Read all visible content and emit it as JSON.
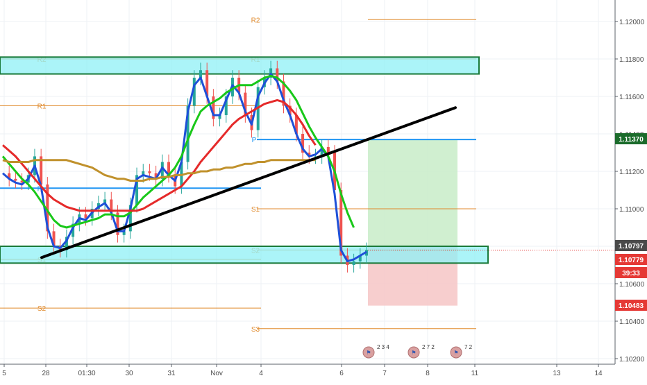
{
  "chart_data": {
    "type": "line",
    "title": "",
    "ylim": [
      1.102,
      1.1212
    ],
    "y_ticks": [
      "1.12000",
      "1.11800",
      "1.11600",
      "1.11400",
      "1.11200",
      "1.11000",
      "1.10800",
      "1.10600",
      "1.10400",
      "1.10200"
    ],
    "x_ticks": [
      "5",
      "28",
      "01:30",
      "30",
      "31",
      "Nov",
      "4",
      "6",
      "7",
      "8",
      "11",
      "13",
      "14"
    ],
    "grid": true,
    "price_labels": [
      {
        "value": "1.11370",
        "color": "#1b6b2b",
        "kind": "take-profit"
      },
      {
        "value": "1.10797",
        "color": "#4a4a4a",
        "kind": "entry"
      },
      {
        "value": "1.10779",
        "color": "#e53935",
        "kind": "last-price"
      },
      {
        "value": "39:33",
        "color": "#e53935",
        "kind": "countdown"
      },
      {
        "value": "1.10483",
        "color": "#e53935",
        "kind": "stop-loss"
      }
    ],
    "pivot_levels": [
      {
        "label": "R2",
        "value": 1.1201,
        "color": "#e08a2c"
      },
      {
        "label": "R2",
        "value": 1.118,
        "color": "#e08a2c"
      },
      {
        "label": "R1",
        "value": 1.118,
        "color": "#e08a2c"
      },
      {
        "label": "R1",
        "value": 1.1155,
        "color": "#e08a2c"
      },
      {
        "label": "P",
        "value": 1.1137,
        "color": "#2196f3"
      },
      {
        "label": "P",
        "value": 1.1111,
        "color": "#2196f3"
      },
      {
        "label": "S1",
        "value": 1.11,
        "color": "#e08a2c"
      },
      {
        "label": "S1",
        "value": 1.1073,
        "color": "#e08a2c"
      },
      {
        "label": "S2",
        "value": 1.1078,
        "color": "#e08a2c"
      },
      {
        "label": "S2",
        "value": 1.1047,
        "color": "#e08a2c"
      },
      {
        "label": "S3",
        "value": 1.1036,
        "color": "#e08a2c"
      }
    ],
    "zones": [
      {
        "name": "resistance",
        "y_top": 1.1181,
        "y_bottom": 1.1172,
        "color": "#8ff0f5"
      },
      {
        "name": "support",
        "y_top": 1.108,
        "y_bottom": 1.1071,
        "color": "#8ff0f5"
      }
    ],
    "position": {
      "entry": 1.10797,
      "take_profit": 1.1137,
      "stop_loss": 1.10483
    },
    "trendline": {
      "from": 1.1074,
      "to": 1.1154
    },
    "price_series": [
      1.1119,
      1.1116,
      1.1115,
      1.1114,
      1.1118,
      1.1128,
      1.1113,
      1.1088,
      1.108,
      1.1078,
      1.1085,
      1.1092,
      1.1097,
      1.1095,
      1.11,
      1.1103,
      1.1105,
      1.1098,
      1.1086,
      1.1088,
      1.1102,
      1.1118,
      1.112,
      1.1119,
      1.1116,
      1.1125,
      1.1118,
      1.1112,
      1.1125,
      1.1155,
      1.117,
      1.1174,
      1.116,
      1.1148,
      1.115,
      1.116,
      1.117,
      1.1162,
      1.115,
      1.1142,
      1.1165,
      1.117,
      1.1175,
      1.1168,
      1.1155,
      1.115,
      1.114,
      1.113,
      1.1128,
      1.1128,
      1.1133,
      1.113,
      1.111,
      1.1075,
      1.107,
      1.1072,
      1.1075,
      1.1078
    ],
    "series": [
      {
        "values": [
          1.1119,
          1.1116,
          1.1114,
          1.1113,
          1.1116,
          1.1123,
          1.1112,
          1.109,
          1.108,
          1.1079,
          1.1083,
          1.109,
          1.1095,
          1.1094,
          1.1098,
          1.1101,
          1.1103,
          1.1098,
          1.1088,
          1.1088,
          1.11,
          1.1116,
          1.1118,
          1.1117,
          1.1116,
          1.1122,
          1.1118,
          1.1115,
          1.1125,
          1.1152,
          1.1166,
          1.117,
          1.116,
          1.115,
          1.115,
          1.1158,
          1.1166,
          1.1162,
          1.1152,
          1.1145,
          1.116,
          1.1167,
          1.1172,
          1.1168,
          1.1158,
          1.115,
          1.114,
          1.1132,
          1.1128,
          1.1129,
          1.1132,
          1.1128,
          1.1108,
          1.1078,
          1.1072,
          1.1073,
          1.1075,
          1.1077
        ],
        "color": "#1e50d8"
      },
      {
        "values": [
          1.1128,
          1.1124,
          1.112,
          1.1116,
          1.1113,
          1.1109,
          1.1104,
          1.1099,
          1.1094,
          1.1091,
          1.109,
          1.1091,
          1.1092,
          1.1093,
          1.1094,
          1.1095,
          1.1097,
          1.1097,
          1.1096,
          1.1096,
          1.1098,
          1.1102,
          1.1106,
          1.1109,
          1.1112,
          1.1115,
          1.1118,
          1.1122,
          1.1128,
          1.1137,
          1.1145,
          1.1152,
          1.1155,
          1.1157,
          1.1159,
          1.1162,
          1.1164,
          1.1166,
          1.1166,
          1.1166,
          1.1168,
          1.117,
          1.1171,
          1.117,
          1.1167,
          1.1163,
          1.1158,
          1.1151,
          1.1144,
          1.1138,
          1.1133,
          1.1128,
          1.112,
          1.1108,
          1.1098,
          1.109,
          null,
          null
        ],
        "color": "#19c819"
      },
      {
        "values": [
          1.1134,
          1.1131,
          1.1128,
          1.1124,
          1.112,
          1.1116,
          1.1112,
          1.1108,
          1.1105,
          1.1103,
          1.1101,
          1.11,
          1.1099,
          1.1099,
          1.1099,
          1.1099,
          1.1099,
          1.1099,
          1.1099,
          1.1099,
          1.1099,
          1.1099,
          1.11,
          1.1102,
          1.1104,
          1.1106,
          1.1108,
          1.111,
          1.1112,
          1.1116,
          1.112,
          1.1125,
          1.1129,
          1.1133,
          1.1137,
          1.1141,
          1.1145,
          1.1148,
          1.115,
          1.1152,
          1.1154,
          1.1156,
          1.1157,
          1.1158,
          1.1157,
          1.1154,
          1.115,
          1.1145,
          1.1139,
          1.1134,
          null,
          null,
          null,
          null,
          null,
          null,
          null,
          null
        ],
        "color": "#e52a2a"
      },
      {
        "values": [
          1.1126,
          1.1125,
          1.1125,
          1.1125,
          1.1125,
          1.1126,
          1.1126,
          1.1126,
          1.1126,
          1.1126,
          1.1126,
          1.1125,
          1.1124,
          1.1123,
          1.1122,
          1.112,
          1.1118,
          1.1117,
          1.1116,
          1.1116,
          1.1115,
          1.1115,
          1.1115,
          1.1116,
          1.1116,
          1.1117,
          1.1117,
          1.1118,
          1.1118,
          1.1119,
          1.1119,
          1.112,
          1.112,
          1.1121,
          1.1121,
          1.1122,
          1.1122,
          1.1123,
          1.1124,
          1.1124,
          1.1125,
          1.1125,
          1.1126,
          1.1126,
          1.1126,
          1.1126,
          1.1126,
          1.1126,
          1.1126,
          1.1126,
          null,
          null,
          null,
          null,
          null,
          null,
          null,
          null
        ],
        "color": "#c0912c"
      }
    ],
    "event_markers": [
      {
        "label": "2  3  4",
        "flag": "us"
      },
      {
        "label": "2 7 2",
        "flag": "us"
      },
      {
        "label": "7 2",
        "flag": "us"
      }
    ],
    "colors": {
      "axis_text": "#4a4a4a",
      "grid": "#eef0f4",
      "trendline": "#000000",
      "profit_zone": "#c8ecc8",
      "loss_zone": "#f6c6c6"
    }
  }
}
